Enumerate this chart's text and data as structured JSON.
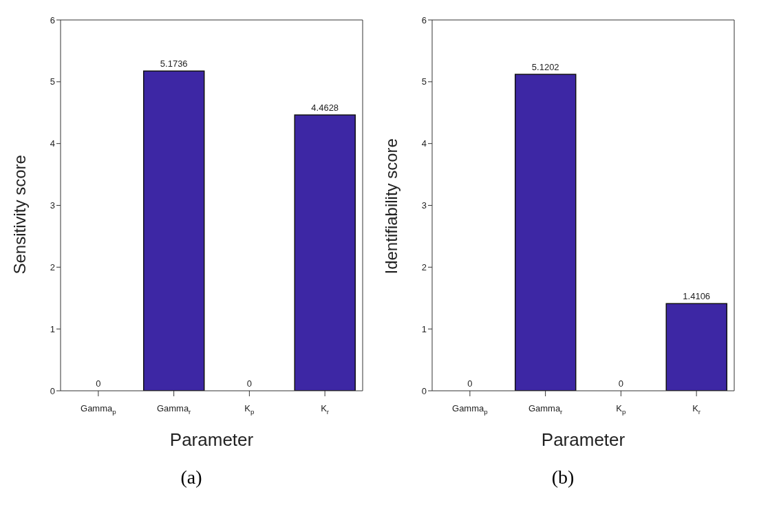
{
  "chart_data": [
    {
      "type": "bar",
      "categories": [
        "Gamma$_{p}$",
        "Gamma$_{r}$",
        "K$_{p}$",
        "K$_{r}$"
      ],
      "values": [
        0,
        5.1736,
        0,
        4.4628
      ],
      "color": "#3d27a4",
      "xlabel": "Parameter",
      "ylabel": "Sensitivity score",
      "ylim": [
        0,
        6
      ],
      "yticks": [
        0,
        1,
        2,
        3,
        4,
        5,
        6
      ],
      "data_labels": true,
      "grid": false,
      "legend": false,
      "annotations": [
        "(a)"
      ]
    },
    {
      "type": "bar",
      "categories": [
        "Gamma$_{p}$",
        "Gamma$_{r}$",
        "K$_{p}$",
        "K$_{r}$"
      ],
      "values": [
        0,
        5.1202,
        0,
        1.4106
      ],
      "color": "#3d27a4",
      "xlabel": "Parameter",
      "ylabel": "Identifiability score",
      "ylim": [
        0,
        6
      ],
      "yticks": [
        0,
        1,
        2,
        3,
        4,
        5,
        6
      ],
      "data_labels": true,
      "grid": false,
      "legend": false,
      "annotations": [
        "(b)"
      ]
    }
  ]
}
